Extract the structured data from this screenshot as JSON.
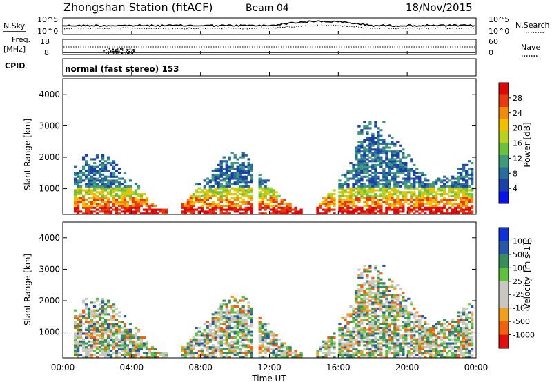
{
  "header": {
    "station": "Zhongshan Station (fitACF)",
    "beam": "Beam 04",
    "date": "18/Nov/2015"
  },
  "noise_panel": {
    "left_label": "N.Sky",
    "right_label": "N.Search",
    "left_ticks": [
      "10^5",
      "10^0"
    ],
    "right_ticks": [
      "10^5",
      "10^0"
    ]
  },
  "freq_panel": {
    "left_label_1": "Freq.",
    "left_label_2": "[MHz]",
    "right_label": "Nave",
    "left_ticks": [
      "18",
      "8"
    ],
    "right_ticks": [
      "60",
      "0"
    ]
  },
  "cpid": {
    "label": "CPID",
    "value": "normal (fast stereo) 153"
  },
  "chart_data": [
    {
      "type": "heatmap",
      "parameter": "power",
      "ylabel": "Slant Range [km]",
      "ylim": [
        180,
        4500
      ],
      "y_ticks": [
        "1000",
        "2000",
        "3000",
        "4000"
      ],
      "xlim": [
        "00:00",
        "24:00"
      ],
      "colorbar": {
        "label": "Power [dB]",
        "ticks": [
          "28",
          "24",
          "20",
          "16",
          "12",
          "8",
          "4"
        ],
        "colors": [
          "#0a14e8",
          "#1c3fa8",
          "#2a6c9c",
          "#3f9a7a",
          "#6cc040",
          "#b8d020",
          "#f0c000",
          "#f08a10",
          "#e83a10",
          "#d80a0a"
        ]
      }
    },
    {
      "type": "heatmap",
      "parameter": "velocity",
      "ylabel": "Slant Range [km]",
      "ylim": [
        180,
        4500
      ],
      "y_ticks": [
        "1000",
        "2000",
        "3000",
        "4000"
      ],
      "xlim": [
        "00:00",
        "24:00"
      ],
      "colorbar": {
        "label": "Velocity",
        "unit": "[m s-1]",
        "ticks": [
          "1000",
          "500",
          "100",
          "25",
          "-25",
          "-100",
          "-500",
          "-1000"
        ],
        "colors": [
          "#e01010",
          "#f06010",
          "#f0a020",
          "#c8c8c0",
          "#c8c8c0",
          "#60c040",
          "#3a8c5a",
          "#2a56a8",
          "#1030d8"
        ]
      }
    }
  ],
  "x_axis": {
    "ticks": [
      "00:00",
      "04:00",
      "08:00",
      "12:00",
      "16:00",
      "20:00",
      "00:00"
    ],
    "label": "Time UT"
  }
}
